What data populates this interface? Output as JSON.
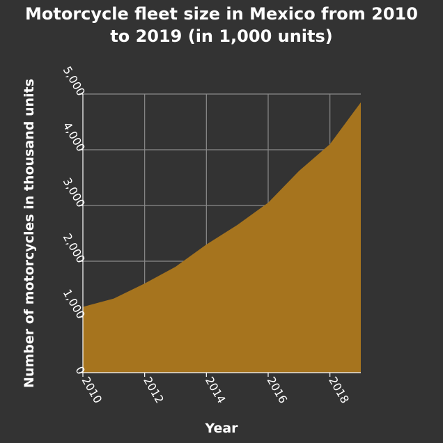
{
  "chart_data": {
    "type": "area",
    "title": "Motorcycle fleet size in Mexico from 2010 to 2019 (in 1,000 units)",
    "title_lines": [
      "Motorcycle fleet size in Mexico from 2010",
      "to 2019 (in 1,000 units)"
    ],
    "xlabel": "Year",
    "ylabel": "Number of motorcycles in thousand units",
    "x": [
      2010,
      2011,
      2012,
      2013,
      2014,
      2015,
      2016,
      2017,
      2018,
      2019
    ],
    "values": [
      1180,
      1330,
      1600,
      1900,
      2300,
      2650,
      3050,
      3620,
      4100,
      4850
    ],
    "xlim": [
      2010,
      2019
    ],
    "ylim": [
      0,
      5000
    ],
    "xticks": [
      2010,
      2012,
      2014,
      2016,
      2018
    ],
    "xtick_labels": [
      "2010",
      "2012",
      "2014",
      "2016",
      "2018"
    ],
    "yticks": [
      0,
      1000,
      2000,
      3000,
      4000,
      5000
    ],
    "ytick_labels": [
      "0",
      "1,000",
      "2,000",
      "3,000",
      "4,000",
      "5,000"
    ],
    "grid": true,
    "fill_color": "#a6741e",
    "background_color": "#333333"
  }
}
